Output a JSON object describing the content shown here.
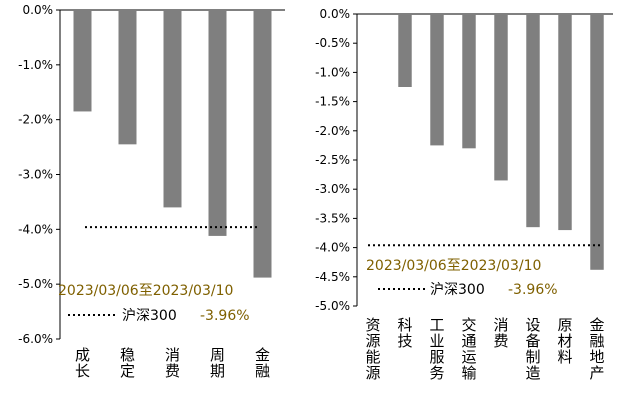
{
  "chart_data": [
    {
      "type": "bar",
      "categories": [
        "成长",
        "稳定",
        "消费",
        "周期",
        "金融"
      ],
      "values": [
        -1.85,
        -2.45,
        -3.6,
        -4.12,
        -4.88
      ],
      "ylim": [
        -6.0,
        0.0
      ],
      "yticks": [
        "0.0%",
        "-1.0%",
        "-2.0%",
        "-3.0%",
        "-4.0%",
        "-5.0%",
        "-6.0%"
      ],
      "benchmark": {
        "name": "沪深300",
        "value": -3.96,
        "label": "-3.96%"
      },
      "annotation": "2023/03/06至2023/03/10",
      "grid": false,
      "bar_color": "#7f7f7f",
      "annotation_color": "#7f6000"
    },
    {
      "type": "bar",
      "categories": [
        "资源能源",
        "科技",
        "工业服务",
        "交通运输",
        "消费",
        "设备制造",
        "原材料",
        "金融地产"
      ],
      "values": [
        0.0,
        -1.25,
        -2.25,
        -2.3,
        -2.85,
        -3.65,
        -3.7,
        -4.38
      ],
      "ylim": [
        -5.0,
        0.0
      ],
      "yticks": [
        "0.0%",
        "-0.5%",
        "-1.0%",
        "-1.5%",
        "-2.0%",
        "-2.5%",
        "-3.0%",
        "-3.5%",
        "-4.0%",
        "-4.5%",
        "-5.0%"
      ],
      "benchmark": {
        "name": "沪深300",
        "value": -3.96,
        "label": "-3.96%"
      },
      "annotation": "2023/03/06至2023/03/10",
      "grid": false,
      "bar_color": "#7f7f7f",
      "annotation_color": "#7f6000"
    }
  ]
}
